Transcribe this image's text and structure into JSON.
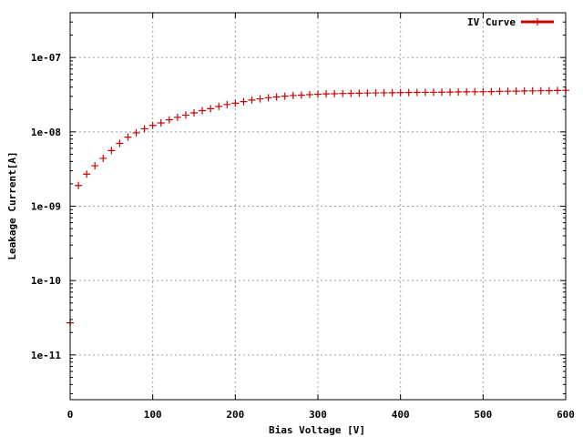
{
  "chart_data": {
    "type": "scatter",
    "title": "",
    "xlabel": "Bias Voltage [V]",
    "ylabel": "Leakage Current[A]",
    "xlim": [
      0,
      600
    ],
    "ylim": [
      2.5e-12,
      4e-07
    ],
    "yscale": "log",
    "grid": true,
    "legend_position": "top-right",
    "x_ticks": [
      0,
      100,
      200,
      300,
      400,
      500,
      600
    ],
    "x_tick_labels": [
      "0",
      "100",
      "200",
      "300",
      "400",
      "500",
      "600"
    ],
    "y_ticks": [
      1e-11,
      1e-10,
      1e-09,
      1e-08,
      1e-07
    ],
    "y_tick_labels": [
      "1e-11",
      "1e-10",
      "1e-09",
      "1e-08",
      "1e-07"
    ],
    "series": [
      {
        "name": "IV Curve",
        "color": "#cc0000",
        "marker": "plus",
        "x": [
          0,
          10,
          20,
          30,
          40,
          50,
          60,
          70,
          80,
          90,
          100,
          110,
          120,
          130,
          140,
          150,
          160,
          170,
          180,
          190,
          200,
          210,
          220,
          230,
          240,
          250,
          260,
          270,
          280,
          290,
          300,
          310,
          320,
          330,
          340,
          350,
          360,
          370,
          380,
          390,
          400,
          410,
          420,
          430,
          440,
          450,
          460,
          470,
          480,
          490,
          500,
          510,
          520,
          530,
          540,
          550,
          560,
          570,
          580,
          590,
          600
        ],
        "y": [
          2.7e-11,
          1.9e-09,
          2.7e-09,
          3.5e-09,
          4.4e-09,
          5.6e-09,
          7e-09,
          8.5e-09,
          9.7e-09,
          1.1e-08,
          1.22e-08,
          1.32e-08,
          1.45e-08,
          1.57e-08,
          1.68e-08,
          1.8e-08,
          1.93e-08,
          2.05e-08,
          2.2e-08,
          2.33e-08,
          2.43e-08,
          2.55e-08,
          2.68e-08,
          2.78e-08,
          2.88e-08,
          2.95e-08,
          3.02e-08,
          3.08e-08,
          3.12e-08,
          3.17e-08,
          3.2e-08,
          3.24e-08,
          3.26e-08,
          3.28e-08,
          3.3e-08,
          3.31e-08,
          3.33e-08,
          3.34e-08,
          3.35e-08,
          3.36e-08,
          3.37e-08,
          3.38e-08,
          3.39e-08,
          3.4e-08,
          3.41e-08,
          3.42e-08,
          3.43e-08,
          3.44e-08,
          3.45e-08,
          3.46e-08,
          3.47e-08,
          3.48e-08,
          3.5e-08,
          3.52e-08,
          3.53e-08,
          3.55e-08,
          3.56e-08,
          3.57e-08,
          3.58e-08,
          3.6e-08,
          3.62e-08
        ]
      }
    ]
  }
}
